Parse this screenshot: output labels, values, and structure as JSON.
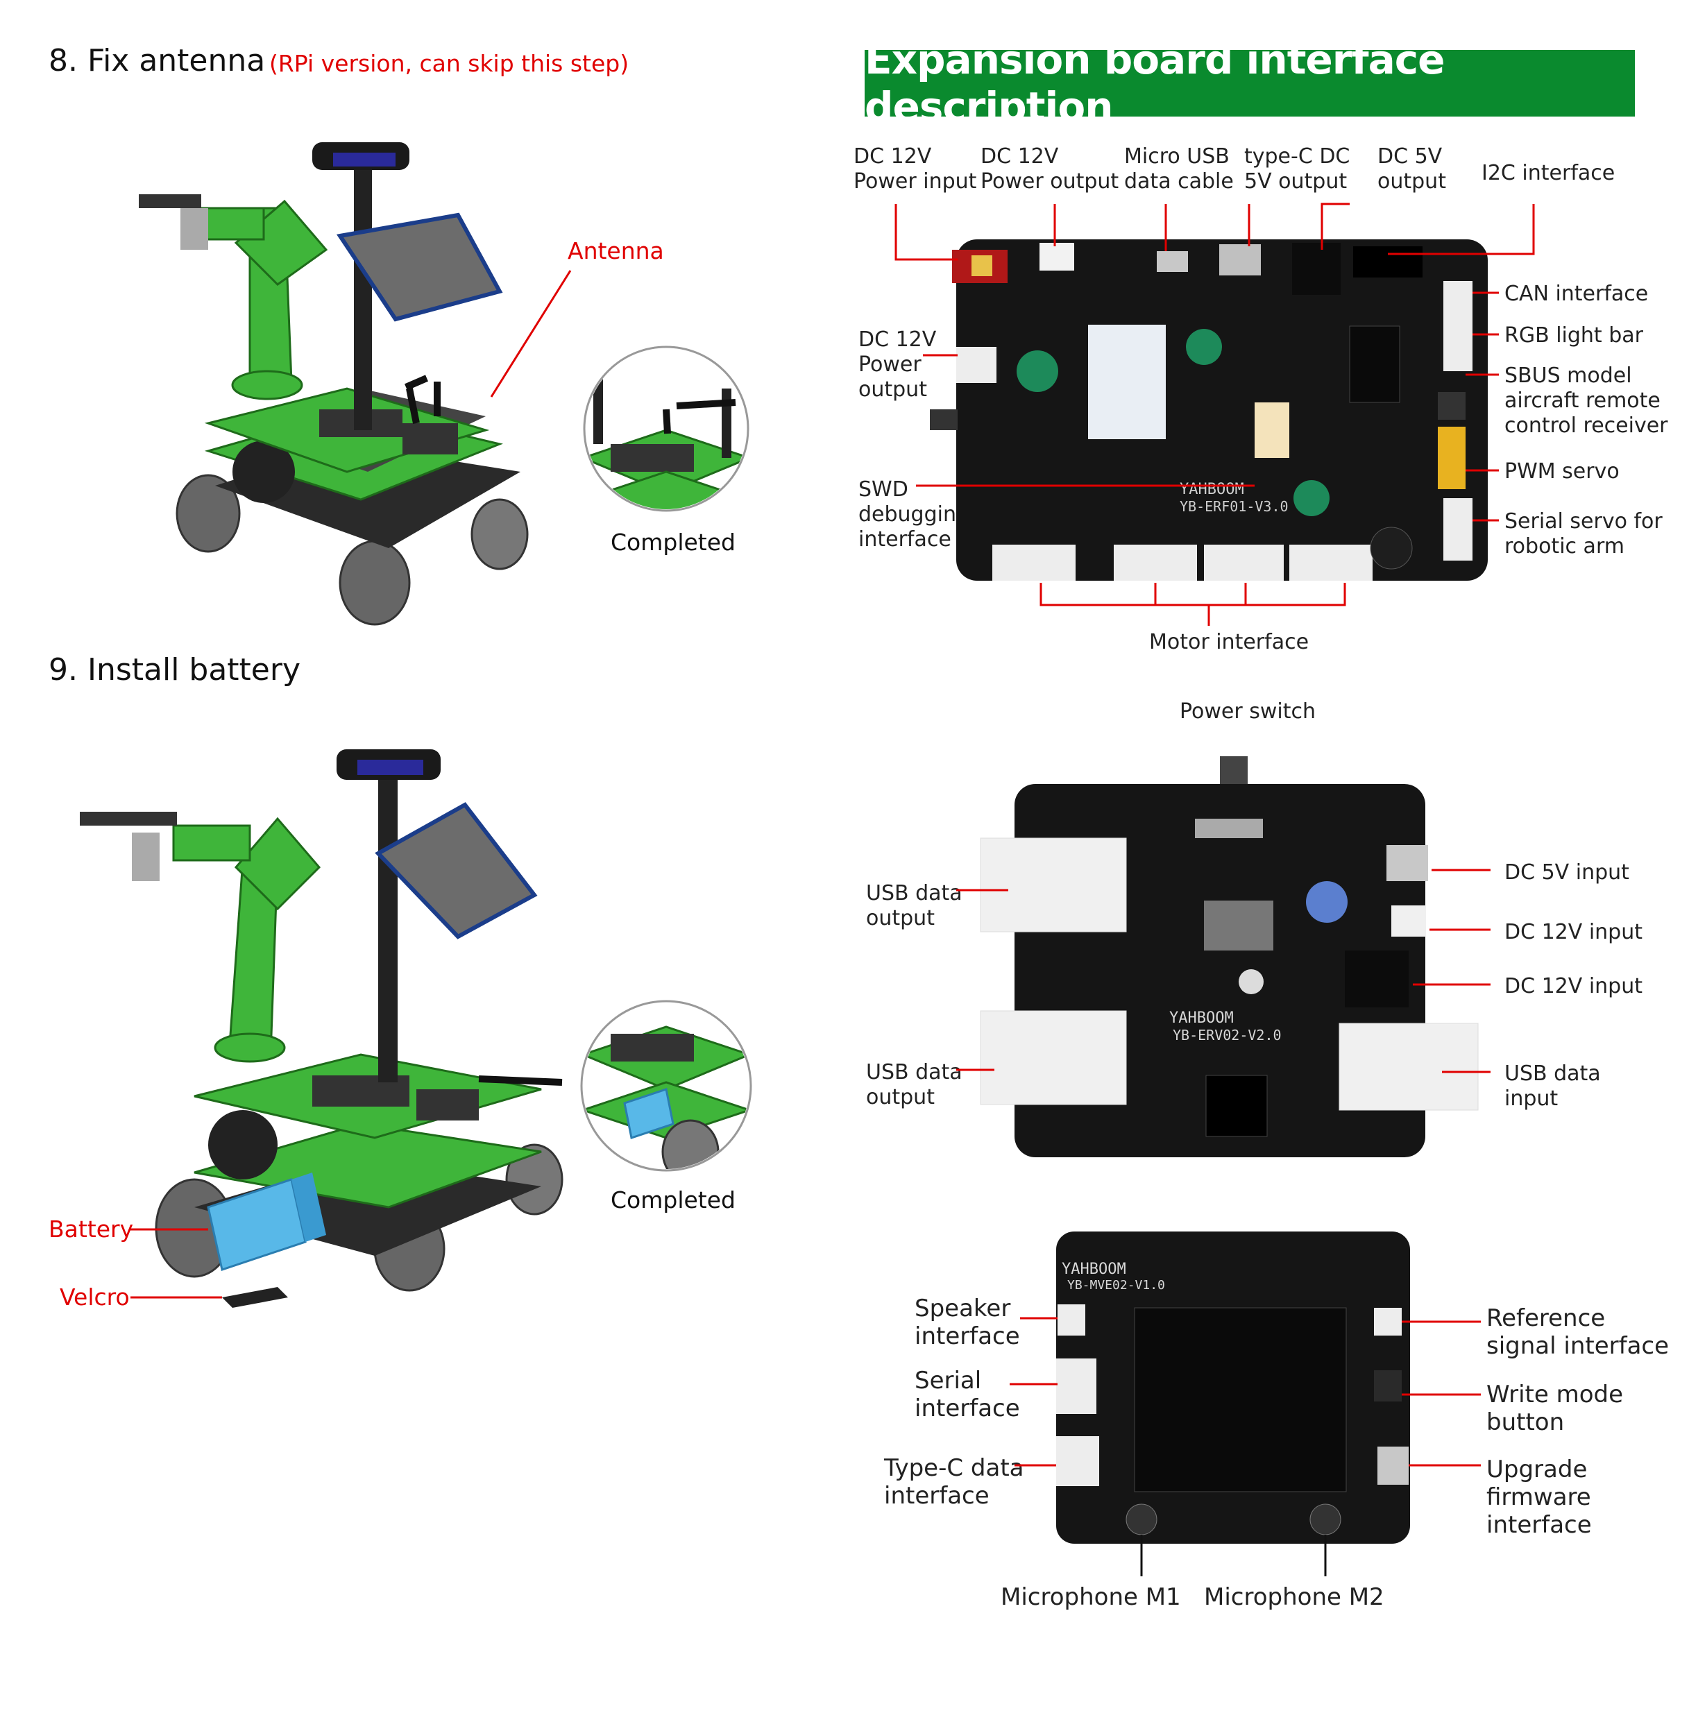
{
  "left": {
    "step8": {
      "title": "8. Fix antenna",
      "note": "(RPi version, can skip this step)",
      "antenna_label": "Antenna",
      "completed": "Completed"
    },
    "step9": {
      "title": "9. Install battery",
      "battery_label": "Battery",
      "velcro_label": "Velcro",
      "completed": "Completed"
    }
  },
  "banner": {
    "title": "Expansion board interface description"
  },
  "board1": {
    "top_labels": [
      "DC 12V\nPower input",
      "DC 12V\nPower output",
      "Micro USB\ndata cable",
      "type-C DC\n5V output",
      "DC 5V\noutput",
      "I2C interface"
    ],
    "left_labels": [
      "DC 12V\nPower\noutput",
      "SWD\ndebugging\ninterface"
    ],
    "right_labels": [
      "CAN interface",
      "RGB light bar",
      "SBUS model\naircraft remote\ncontrol receiver",
      "PWM servo",
      "Serial servo for\nrobotic arm"
    ],
    "bottom_label": "Motor interface",
    "silk_brand": "YAHBOOM",
    "silk_model": "YB-ERF01-V3.0"
  },
  "board2": {
    "top_label": "Power switch",
    "left_labels": [
      "USB data\noutput",
      "USB data\noutput"
    ],
    "right_labels": [
      "DC 5V input",
      "DC 12V input",
      "DC 12V input",
      "USB data\ninput"
    ],
    "silk_brand": "YAHBOOM",
    "silk_model": "YB-ERV02-V2.0"
  },
  "board3": {
    "left_labels": [
      "Speaker\ninterface",
      "Serial\ninterface",
      "Type-C data\ninterface"
    ],
    "right_labels": [
      "Reference\nsignal interface",
      "Write mode\nbutton",
      "Upgrade\nfirmware\ninterface"
    ],
    "bottom_labels": [
      "Microphone M1",
      "Microphone M2"
    ],
    "silk_brand": "YAHBOOM",
    "silk_model": "YB-MVE02-V1.0"
  },
  "colors": {
    "accent_red": "#e00000",
    "banner_green": "#0a8a2e",
    "pcb": "#151515",
    "robot_green": "#3fb53a"
  }
}
